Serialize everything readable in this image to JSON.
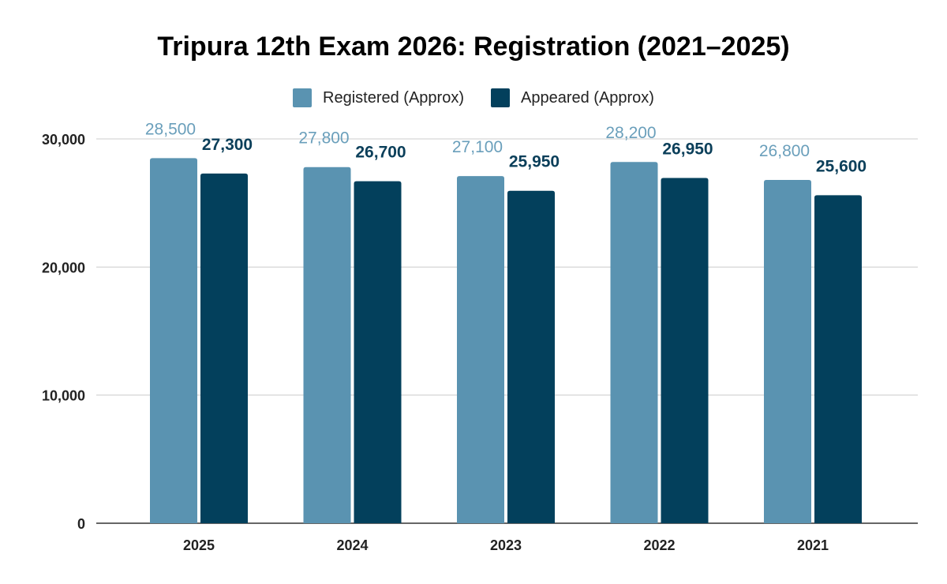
{
  "chart_data": {
    "type": "bar",
    "title": "Tripura 12th Exam 2026: Registration (2021–2025)",
    "xlabel": "",
    "ylabel": "",
    "categories": [
      "2025",
      "2024",
      "2023",
      "2022",
      "2021"
    ],
    "series": [
      {
        "name": "Registered (Approx)",
        "color": "#5a93b1",
        "label_color": "#6a9fbb",
        "values": [
          28500,
          27800,
          27100,
          28200,
          26800
        ]
      },
      {
        "name": "Appeared (Approx)",
        "color": "#03405c",
        "label_color": "#0b3f5a",
        "values": [
          27300,
          26700,
          25950,
          26950,
          25600
        ]
      }
    ],
    "ylim": [
      0,
      30000
    ],
    "yticks": [
      0,
      10000,
      20000,
      30000
    ],
    "ytick_labels": [
      "0",
      "10,000",
      "20,000",
      "30,000"
    ],
    "data_labels": [
      [
        "28,500",
        "27,800",
        "27,100",
        "28,200",
        "26,800"
      ],
      [
        "27,300",
        "26,700",
        "25,950",
        "26,950",
        "25,600"
      ]
    ],
    "grid": true,
    "legend_position": "top"
  }
}
